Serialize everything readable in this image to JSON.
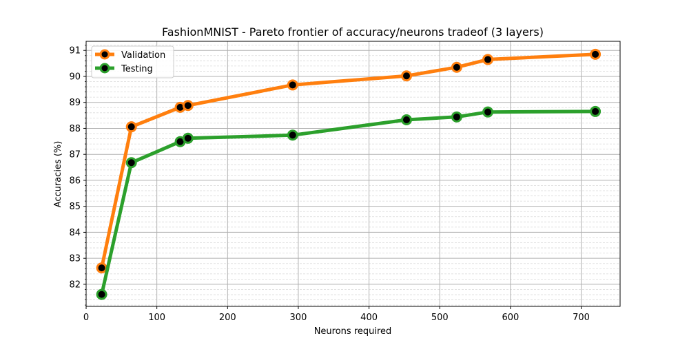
{
  "chart_data": {
    "type": "line",
    "title": "FashionMNIST - Pareto frontier of accuracy/neurons tradeof (3 layers)",
    "xlabel": "Neurons required",
    "ylabel": "Accuracies (%)",
    "xlim": [
      0,
      755
    ],
    "ylim": [
      81.15,
      91.35
    ],
    "xticks": [
      0,
      100,
      200,
      300,
      400,
      500,
      600,
      700
    ],
    "yticks": [
      82,
      83,
      84,
      85,
      86,
      87,
      88,
      89,
      90,
      91
    ],
    "minor_y_step": 0.2,
    "grid": true,
    "legend_position": "upper left",
    "series": [
      {
        "name": "Validation",
        "color": "#ff7f0e",
        "points": [
          {
            "x": 22,
            "y": 82.63
          },
          {
            "x": 64,
            "y": 88.06
          },
          {
            "x": 133,
            "y": 88.81
          },
          {
            "x": 144,
            "y": 88.88
          },
          {
            "x": 292,
            "y": 89.67
          },
          {
            "x": 453,
            "y": 90.02
          },
          {
            "x": 524,
            "y": 90.35
          },
          {
            "x": 568,
            "y": 90.65
          },
          {
            "x": 720,
            "y": 90.85
          }
        ]
      },
      {
        "name": "Testing",
        "color": "#2ca02c",
        "points": [
          {
            "x": 22,
            "y": 81.61
          },
          {
            "x": 64,
            "y": 86.68
          },
          {
            "x": 133,
            "y": 87.49
          },
          {
            "x": 144,
            "y": 87.62
          },
          {
            "x": 292,
            "y": 87.74
          },
          {
            "x": 453,
            "y": 88.33
          },
          {
            "x": 524,
            "y": 88.44
          },
          {
            "x": 568,
            "y": 88.63
          },
          {
            "x": 720,
            "y": 88.65
          }
        ]
      }
    ]
  }
}
